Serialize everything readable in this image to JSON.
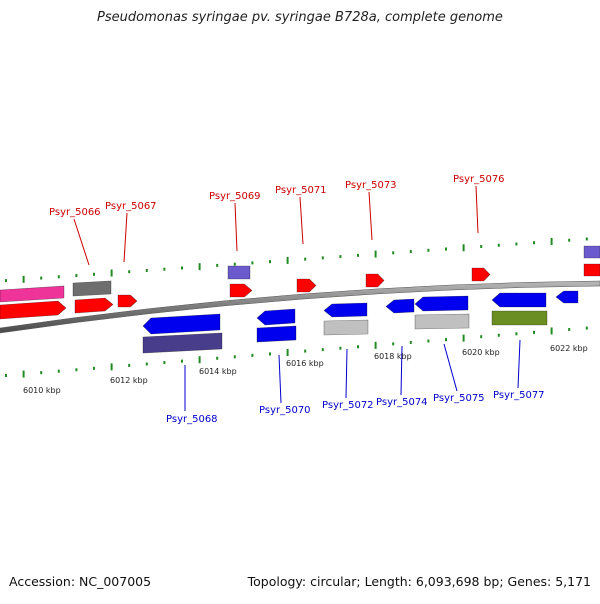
{
  "title": "Pseudomonas syringae pv. syringae B728a, complete genome",
  "footer": {
    "accession": "Accession: NC_007005",
    "summary": "Topology: circular; Length: 6,093,698 bp; Genes: 5,171"
  },
  "colors": {
    "forward_label": "#cc0000",
    "reverse_label": "#0000cc",
    "tick": "#228b22",
    "backbone": "#808080"
  },
  "scale_labels": [
    "6010 kbp",
    "6012 kbp",
    "6014 kbp",
    "6016 kbp",
    "6018 kbp",
    "6020 kbp",
    "6022 kbp"
  ],
  "gene_labels_forward": [
    "Psyr_5066",
    "Psyr_5067",
    "Psyr_5069",
    "Psyr_5071",
    "Psyr_5073",
    "Psyr_5076"
  ],
  "gene_labels_reverse": [
    "Psyr_5068",
    "Psyr_5070",
    "Psyr_5072",
    "Psyr_5074",
    "Psyr_5075",
    "Psyr_5077"
  ],
  "feature_colors": {
    "cds_forward": "#ff0000",
    "cds_reverse": "#0000ee",
    "gene_magenta": "#ee3399",
    "gene_gray": "#6e6e6e",
    "gene_light_gray": "#c0c0c0",
    "gene_violet": "#6a5acd",
    "gene_dark_slate": "#483d8b",
    "gene_olive": "#6b8e23"
  }
}
